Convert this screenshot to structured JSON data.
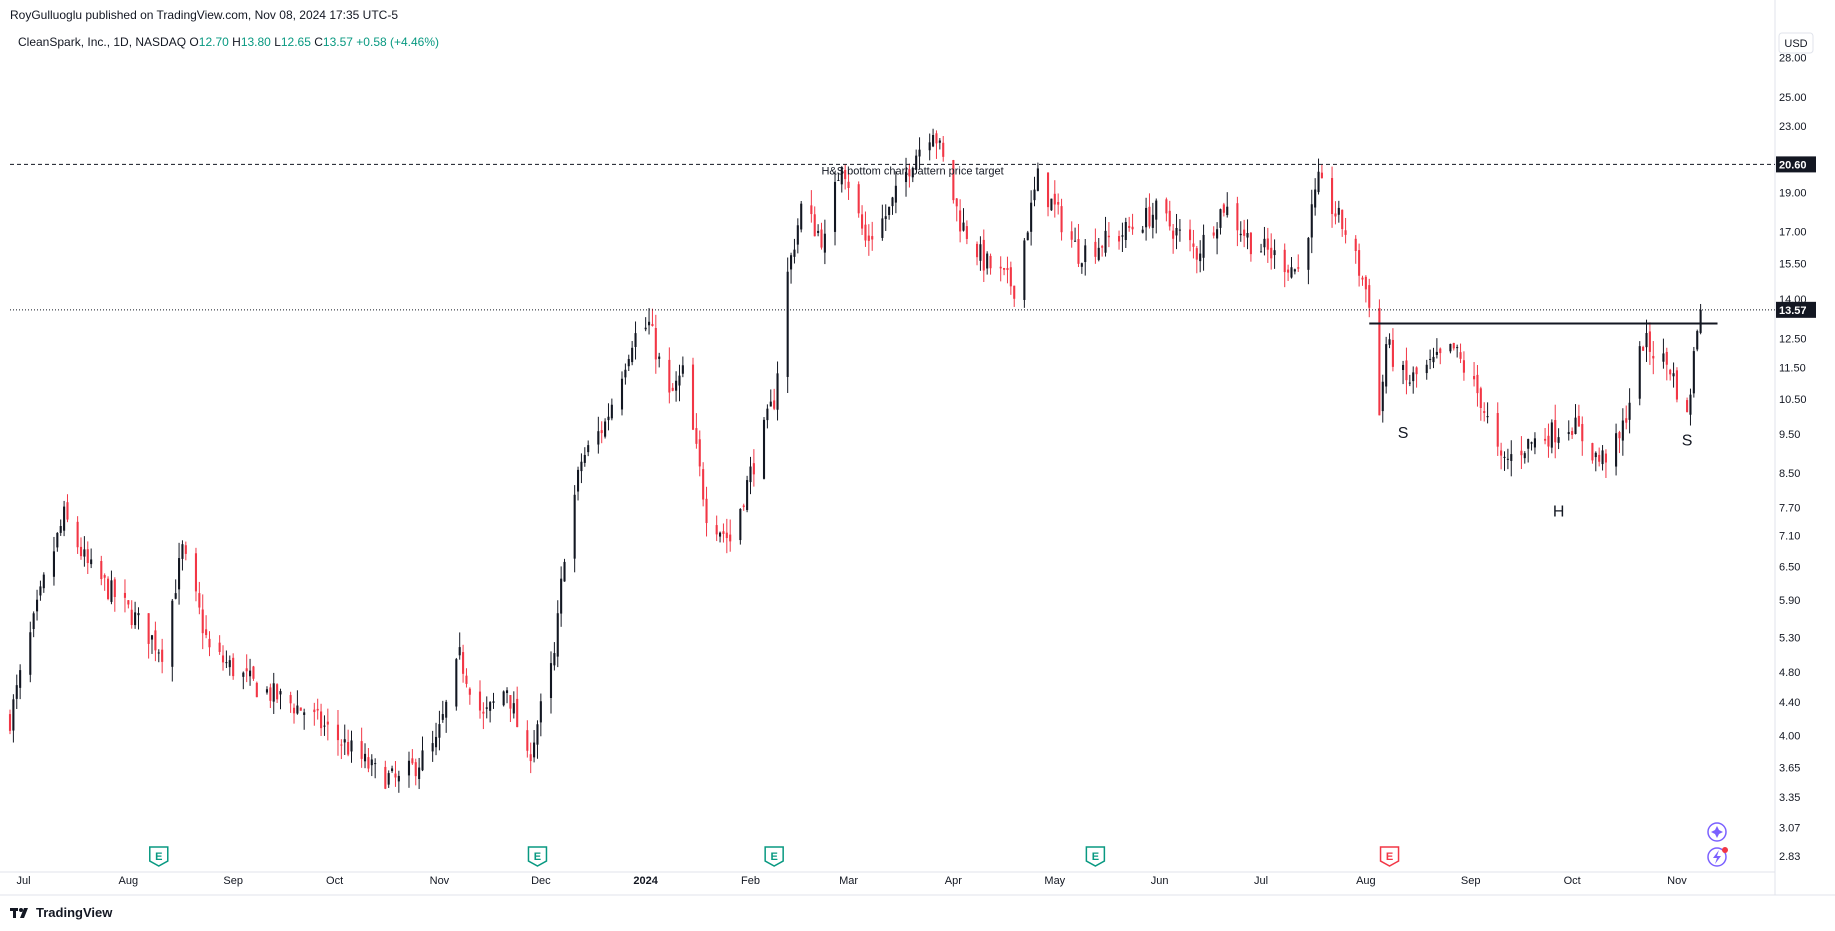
{
  "header": {
    "publisher": "RoyGulluoglu published on TradingView.com, Nov 08, 2024 17:35 UTC-5"
  },
  "legend": {
    "symbol": "CleanSpark, Inc., 1D, NASDAQ",
    "o_label": "O",
    "o": "12.70",
    "h_label": "H",
    "h": "13.80",
    "l_label": "L",
    "l": "12.65",
    "c_label": "C",
    "c": "13.57",
    "change": "+0.58 (+4.46%)"
  },
  "footer": {
    "brand": "TradingView"
  },
  "currency": "USD",
  "colors": {
    "up": "#131722",
    "down": "#f23645",
    "earnings": "#089981",
    "earnings_next": "#f23645",
    "accent": "#7b61ff"
  },
  "chart_data": {
    "type": "candlestick",
    "title": "CleanSpark, Inc., 1D, NASDAQ",
    "y_scale": "log",
    "ylim": [
      2.75,
      31
    ],
    "x_range": [
      "2023-06-27",
      "2024-11-30"
    ],
    "price_ticks": [
      "28.00",
      "25.00",
      "23.00",
      "20.60",
      "19.00",
      "17.00",
      "15.50",
      "14.00",
      "13.57",
      "12.50",
      "11.50",
      "10.50",
      "9.50",
      "8.50",
      "7.70",
      "7.10",
      "6.50",
      "5.90",
      "5.30",
      "4.80",
      "4.40",
      "4.00",
      "3.65",
      "3.35",
      "3.07",
      "2.83"
    ],
    "price_tick_values": [
      28.0,
      25.0,
      23.0,
      20.6,
      19.0,
      17.0,
      15.5,
      14.0,
      13.57,
      12.5,
      11.5,
      10.5,
      9.5,
      8.5,
      7.7,
      7.1,
      6.5,
      5.9,
      5.3,
      4.8,
      4.4,
      4.0,
      3.65,
      3.35,
      3.07,
      2.83
    ],
    "time_ticks": [
      {
        "label": "Jul",
        "date": "2023-07-01"
      },
      {
        "label": "Aug",
        "date": "2023-08-01"
      },
      {
        "label": "Sep",
        "date": "2023-09-01"
      },
      {
        "label": "Oct",
        "date": "2023-10-01"
      },
      {
        "label": "Nov",
        "date": "2023-11-01"
      },
      {
        "label": "Dec",
        "date": "2023-12-01"
      },
      {
        "label": "2024",
        "date": "2024-01-01"
      },
      {
        "label": "Feb",
        "date": "2024-02-01"
      },
      {
        "label": "Mar",
        "date": "2024-03-01"
      },
      {
        "label": "Apr",
        "date": "2024-04-01"
      },
      {
        "label": "May",
        "date": "2024-05-01"
      },
      {
        "label": "Jun",
        "date": "2024-06-01"
      },
      {
        "label": "Jul",
        "date": "2024-07-01"
      },
      {
        "label": "Aug",
        "date": "2024-08-01"
      },
      {
        "label": "Sep",
        "date": "2024-09-01"
      },
      {
        "label": "Oct",
        "date": "2024-10-01"
      },
      {
        "label": "Nov",
        "date": "2024-11-01"
      }
    ],
    "anchors": [
      [
        "2023-06-27",
        4.2
      ],
      [
        "2023-07-07",
        6.2
      ],
      [
        "2023-07-13",
        7.5
      ],
      [
        "2023-07-20",
        6.5
      ],
      [
        "2023-08-03",
        5.6
      ],
      [
        "2023-08-11",
        5.1
      ],
      [
        "2023-08-17",
        6.8
      ],
      [
        "2023-08-25",
        5.1
      ],
      [
        "2023-09-08",
        4.6
      ],
      [
        "2023-09-22",
        4.3
      ],
      [
        "2023-10-04",
        3.9
      ],
      [
        "2023-10-13",
        3.6
      ],
      [
        "2023-10-20",
        3.5
      ],
      [
        "2023-10-31",
        3.9
      ],
      [
        "2023-11-07",
        5.0
      ],
      [
        "2023-11-14",
        4.2
      ],
      [
        "2023-11-21",
        4.6
      ],
      [
        "2023-11-27",
        3.7
      ],
      [
        "2023-12-05",
        5.0
      ],
      [
        "2023-12-08",
        6.8
      ],
      [
        "2023-12-13",
        8.8
      ],
      [
        "2023-12-20",
        9.8
      ],
      [
        "2023-12-28",
        12.5
      ],
      [
        "2024-01-02",
        13.0
      ],
      [
        "2024-01-08",
        10.5
      ],
      [
        "2024-01-12",
        11.3
      ],
      [
        "2024-01-19",
        7.6
      ],
      [
        "2024-01-26",
        7.0
      ],
      [
        "2024-02-01",
        8.5
      ],
      [
        "2024-02-08",
        10.5
      ],
      [
        "2024-02-12",
        15.0
      ],
      [
        "2024-02-16",
        18.2
      ],
      [
        "2024-02-23",
        16.5
      ],
      [
        "2024-02-28",
        21.0
      ],
      [
        "2024-03-06",
        16.5
      ],
      [
        "2024-03-13",
        18.0
      ],
      [
        "2024-03-20",
        21.0
      ],
      [
        "2024-03-26",
        23.0
      ],
      [
        "2024-04-03",
        17.5
      ],
      [
        "2024-04-10",
        15.6
      ],
      [
        "2024-04-19",
        14.5
      ],
      [
        "2024-04-26",
        19.8
      ],
      [
        "2024-05-08",
        16.0
      ],
      [
        "2024-05-20",
        16.8
      ],
      [
        "2024-05-31",
        18.0
      ],
      [
        "2024-06-12",
        16.0
      ],
      [
        "2024-06-20",
        18.3
      ],
      [
        "2024-06-28",
        16.5
      ],
      [
        "2024-07-12",
        15.2
      ],
      [
        "2024-07-18",
        19.5
      ],
      [
        "2024-07-26",
        17.0
      ],
      [
        "2024-08-02",
        14.0
      ],
      [
        "2024-08-05",
        10.0
      ],
      [
        "2024-08-07",
        12.3
      ],
      [
        "2024-08-13",
        11.0
      ],
      [
        "2024-08-27",
        12.1
      ],
      [
        "2024-09-04",
        10.5
      ],
      [
        "2024-09-10",
        8.7
      ],
      [
        "2024-09-17",
        9.2
      ],
      [
        "2024-10-01",
        9.8
      ],
      [
        "2024-10-09",
        8.8
      ],
      [
        "2024-10-15",
        9.3
      ],
      [
        "2024-10-22",
        12.4
      ],
      [
        "2024-10-30",
        11.5
      ],
      [
        "2024-11-04",
        9.9
      ],
      [
        "2024-11-07",
        13.0
      ],
      [
        "2024-11-08",
        13.57
      ]
    ],
    "target_line": {
      "value": 20.6,
      "label": "20.60",
      "style": "dashed"
    },
    "neckline": {
      "value": 13.05,
      "from": "2024-08-02",
      "to": "2024-11-13"
    },
    "last_price": {
      "value": 13.57,
      "label": "13.57",
      "style": "dotted"
    },
    "annotations": [
      {
        "text": "H&S bottom chart pattern price target",
        "date": "2024-02-22",
        "value": 20.0
      },
      {
        "text": "S",
        "date": "2024-08-12",
        "value": 9.4
      },
      {
        "text": "H",
        "date": "2024-09-27",
        "value": 7.5
      },
      {
        "text": "S",
        "date": "2024-11-04",
        "value": 9.2
      }
    ],
    "earnings": [
      {
        "label": "E",
        "date": "2023-08-10",
        "kind": "past"
      },
      {
        "label": "E",
        "date": "2023-11-30",
        "kind": "past"
      },
      {
        "label": "E",
        "date": "2024-02-08",
        "kind": "past"
      },
      {
        "label": "E",
        "date": "2024-05-13",
        "kind": "past"
      },
      {
        "label": "E",
        "date": "2024-08-08",
        "kind": "next"
      }
    ]
  }
}
